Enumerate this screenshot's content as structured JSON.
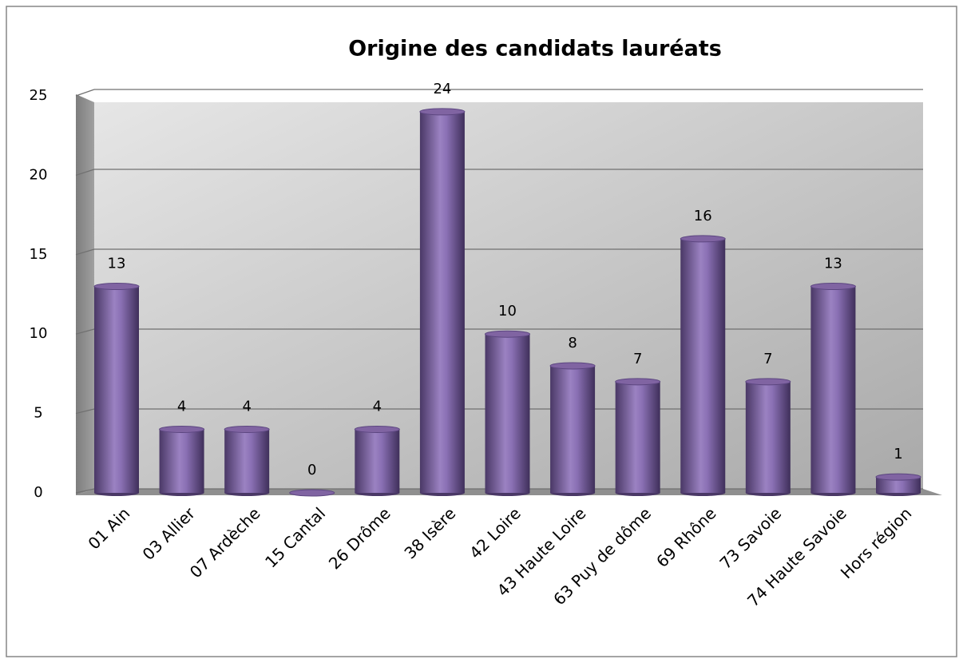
{
  "chart_data": {
    "type": "bar",
    "title": "Origine des candidats lauréats",
    "categories": [
      "01 Ain",
      "03 Allier",
      "07 Ardèche",
      "15 Cantal",
      "26 Drôme",
      "38 Isère",
      "42 Loire",
      "43 Haute Loire",
      "63 Puy de dôme",
      "69 Rhône",
      "73 Savoie",
      "74 Haute Savoie",
      "Hors région"
    ],
    "values": [
      13,
      4,
      4,
      0,
      4,
      24,
      10,
      8,
      7,
      16,
      7,
      13,
      1
    ],
    "color": "#8064a2",
    "ylim": [
      0,
      25
    ],
    "yticks": [
      0,
      5,
      10,
      15,
      20,
      25
    ],
    "grid": true
  }
}
